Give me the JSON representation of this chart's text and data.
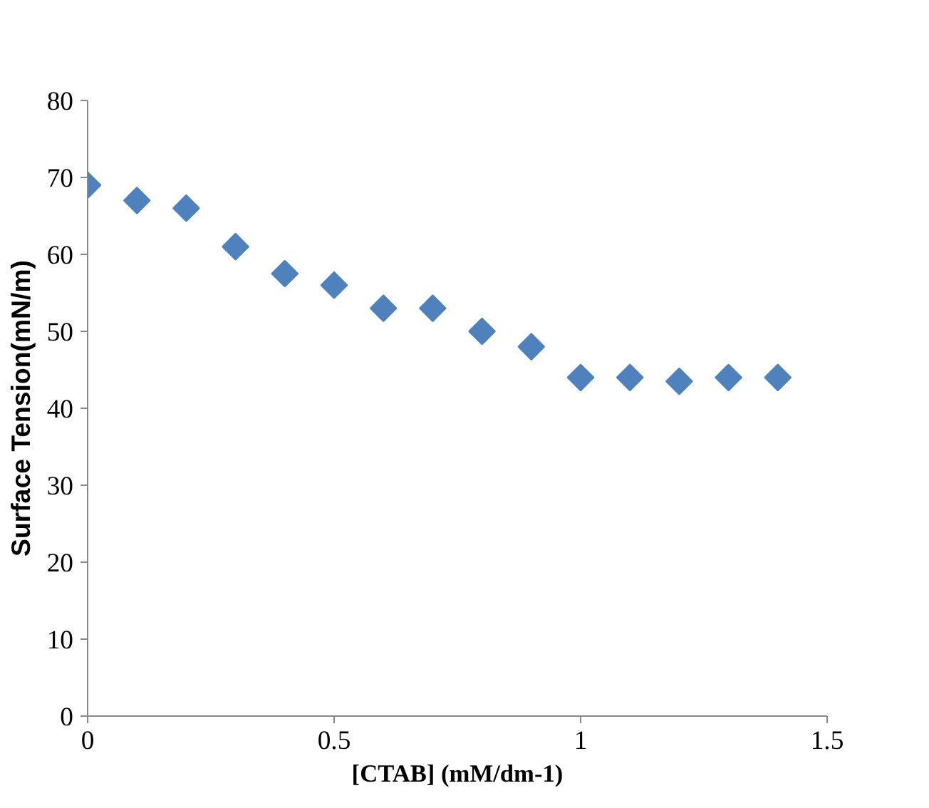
{
  "chart_data": {
    "type": "scatter",
    "xlabel": "[CTAB] (mM/dm-1)",
    "ylabel": "Surface Tension(mN/m)",
    "x": [
      0,
      0.1,
      0.2,
      0.3,
      0.4,
      0.5,
      0.6,
      0.7,
      0.8,
      0.9,
      1.0,
      1.1,
      1.2,
      1.3,
      1.4
    ],
    "series": [
      {
        "color": "#4f81bd",
        "values": [
          69,
          67,
          66,
          61,
          57.5,
          56,
          53,
          53,
          50,
          48,
          44,
          44,
          43.5,
          44,
          44
        ]
      }
    ],
    "xlim": [
      0,
      1.5
    ],
    "xticks": [
      0,
      0.5,
      1,
      1.5
    ],
    "ylim": [
      0,
      80
    ],
    "yticks": [
      0,
      10,
      20,
      30,
      40,
      50,
      60,
      70,
      80
    ],
    "grid": false,
    "marker": "diamond"
  }
}
